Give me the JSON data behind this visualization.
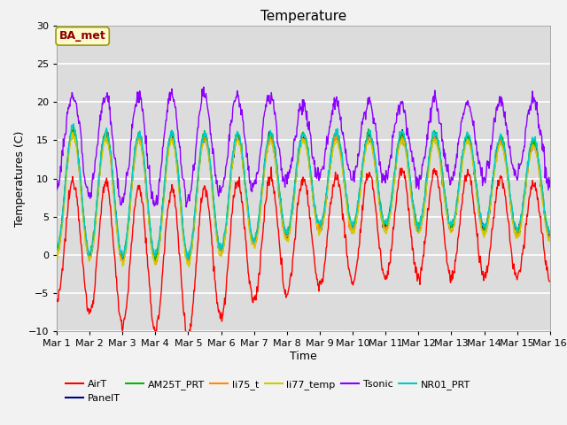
{
  "title": "Temperature",
  "xlabel": "Time",
  "ylabel": "Temperatures (C)",
  "ylim": [
    -10,
    30
  ],
  "annotation": "BA_met",
  "annotation_color": "#8B0000",
  "annotation_bg": "#FFFACD",
  "annotation_edge": "#999900",
  "x_tick_labels": [
    "Mar 1",
    "Mar 2",
    "Mar 3",
    "Mar 4",
    "Mar 5",
    "Mar 6",
    "Mar 7",
    "Mar 8",
    "Mar 9",
    "Mar 10",
    "Mar 11",
    "Mar 12",
    "Mar 13",
    "Mar 14",
    "Mar 15",
    "Mar 16"
  ],
  "series": {
    "AirT": {
      "color": "#FF0000",
      "lw": 1.0
    },
    "PanelT": {
      "color": "#00008B",
      "lw": 1.0
    },
    "AM25T_PRT": {
      "color": "#00BB00",
      "lw": 1.0
    },
    "li75_t": {
      "color": "#FF8C00",
      "lw": 1.0
    },
    "li77_temp": {
      "color": "#CCCC00",
      "lw": 1.0
    },
    "Tsonic": {
      "color": "#8B00FF",
      "lw": 1.0
    },
    "NR01_PRT": {
      "color": "#00CCCC",
      "lw": 1.0
    }
  },
  "bg_color": "#DCDCDC",
  "fig_bg": "#F2F2F2",
  "grid_color": "#FFFFFF",
  "n_points": 900
}
